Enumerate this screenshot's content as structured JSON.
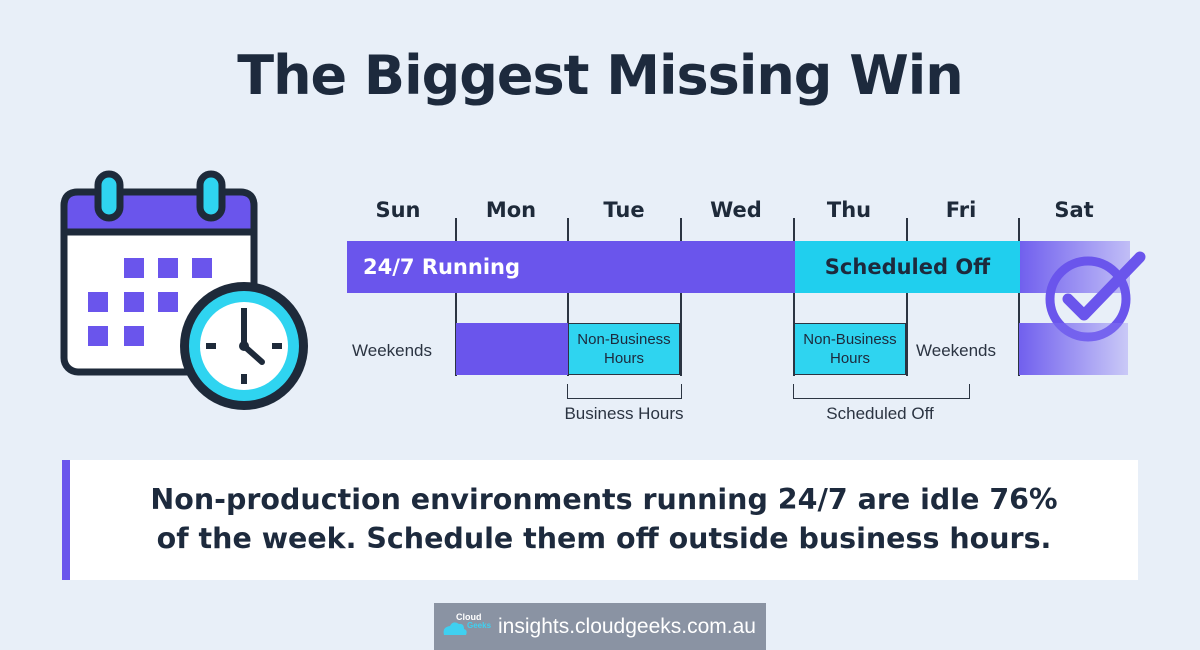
{
  "title": "The Biggest Missing Win",
  "colors": {
    "background": "#e8eff8",
    "running": "#6a55ec",
    "scheduled_off": "#20cfee",
    "text": "#1d2a3d"
  },
  "icons": [
    "calendar-icon",
    "clock-icon",
    "checkmark-circle-icon",
    "cloud-logo-icon"
  ],
  "timeline": {
    "days": [
      "Sun",
      "Mon",
      "Tue",
      "Wed",
      "Thu",
      "Fri",
      "Sat"
    ],
    "bar_running_label": "24/7 Running",
    "bar_off_label": "Scheduled Off",
    "weekends_left": "Weekends",
    "weekends_right": "Weekends",
    "non_business_1": [
      "Non-Business",
      "Hours"
    ],
    "non_business_2": [
      "Non-Business",
      "Hours"
    ],
    "bracket_business": "Business Hours",
    "bracket_scheduled": "Scheduled Off"
  },
  "callout": {
    "line1": "Non-production environments running 24/7 are idle 76%",
    "line2": "of the week. Schedule them off outside business hours."
  },
  "footer": {
    "logo_word1": "Cloud",
    "logo_word2": "Geeks",
    "url": "insights.cloudgeeks.com.au"
  }
}
